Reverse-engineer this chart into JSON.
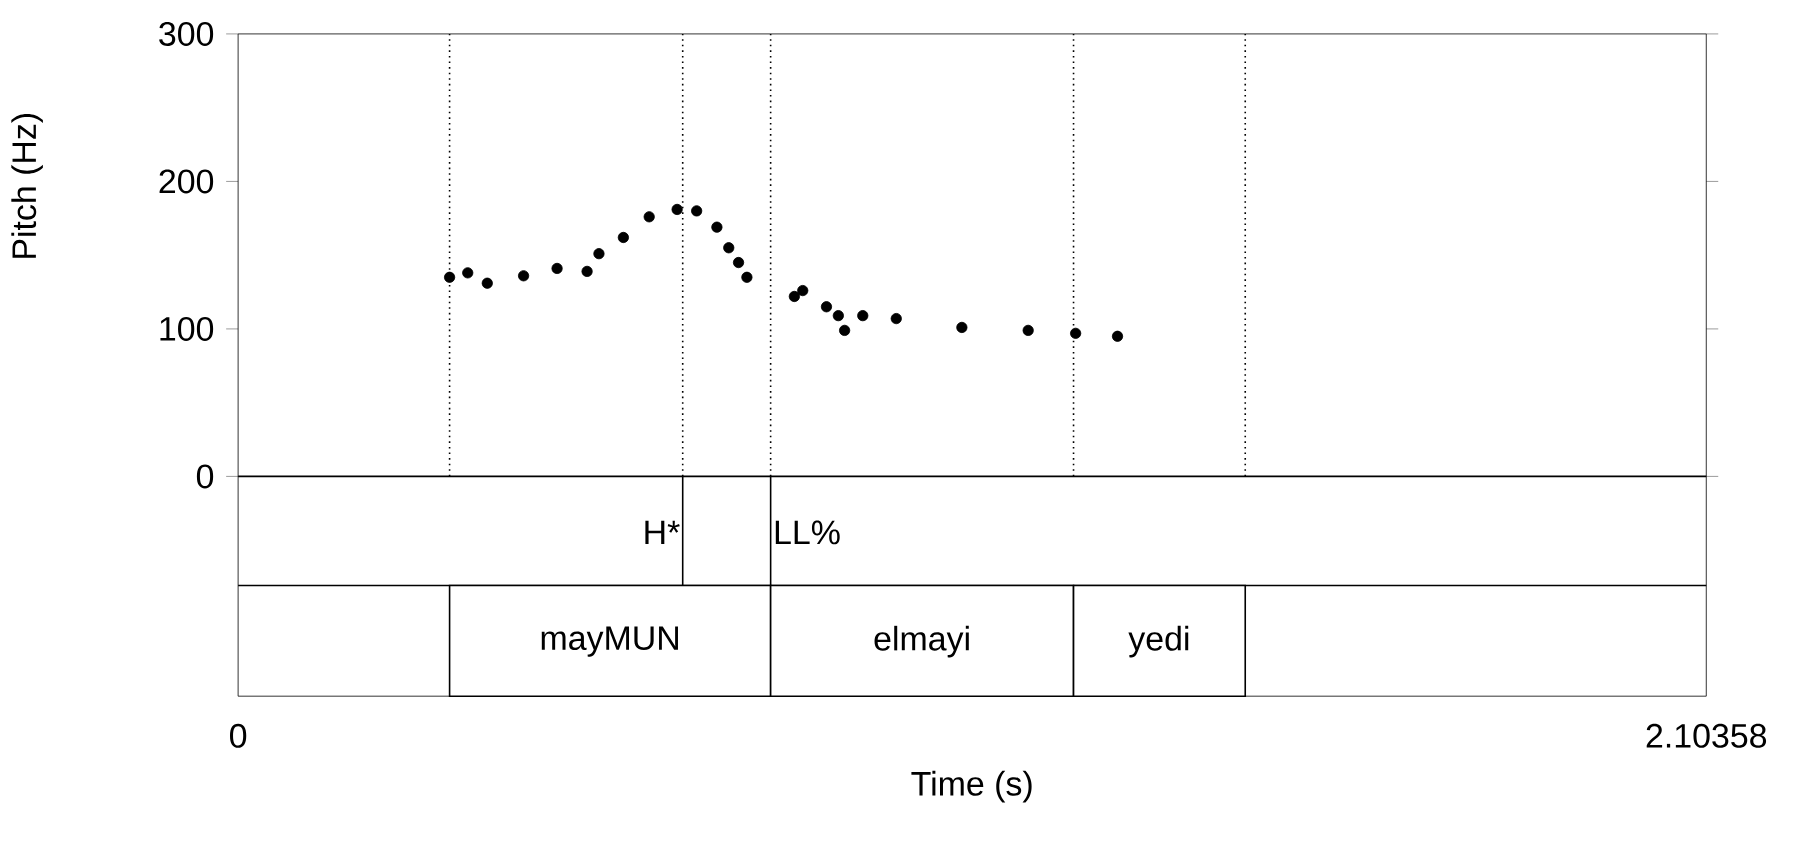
{
  "chart_data": {
    "type": "scatter",
    "xlabel": "Time (s)",
    "ylabel": "Pitch (Hz)",
    "x": [
      0.303,
      0.329,
      0.357,
      0.409,
      0.457,
      0.5,
      0.517,
      0.552,
      0.589,
      0.629,
      0.657,
      0.686,
      0.703,
      0.717,
      0.729,
      0.797,
      0.809,
      0.843,
      0.86,
      0.869,
      0.895,
      0.943,
      1.037,
      1.132,
      1.2,
      1.26
    ],
    "values": [
      135,
      138,
      131,
      136,
      141,
      139,
      151,
      162,
      176,
      181,
      180,
      169,
      155,
      145,
      135,
      122,
      126,
      115,
      109,
      99,
      109,
      107,
      101,
      99,
      97,
      95
    ],
    "color": "#000000",
    "marker": "circle",
    "xlim": [
      0,
      2.10358
    ],
    "ylim": [
      -149,
      300
    ],
    "xticks": [
      0,
      2.10358
    ],
    "yticks": [
      0,
      100,
      200,
      300
    ],
    "ref_lines": [
      {
        "axis": "x",
        "value": 0.303,
        "line_style": "dotted"
      },
      {
        "axis": "x",
        "value": 1.197,
        "line_style": "dotted"
      },
      {
        "axis": "x",
        "value": 1.443,
        "line_style": "dotted"
      },
      {
        "axis": "x",
        "value": 0.637,
        "line_style": "dotted",
        "label": "H*"
      },
      {
        "axis": "x",
        "value": 0.763,
        "line_style": "dotted",
        "label": "LL%"
      },
      {
        "axis": "y",
        "value": 0,
        "line_style": "solid"
      },
      {
        "axis": "y",
        "value": -74,
        "line_style": "solid"
      }
    ],
    "bands": [
      {
        "axis": "x",
        "from": 0.303,
        "to": 0.763,
        "label": "mayMUN",
        "color": "#ffffff"
      },
      {
        "axis": "x",
        "from": 0.763,
        "to": 1.197,
        "label": "elmayi",
        "color": "#ffffff"
      },
      {
        "axis": "x",
        "from": 1.197,
        "to": 1.443,
        "label": "yedi",
        "color": "#ffffff"
      }
    ],
    "grid": false
  }
}
